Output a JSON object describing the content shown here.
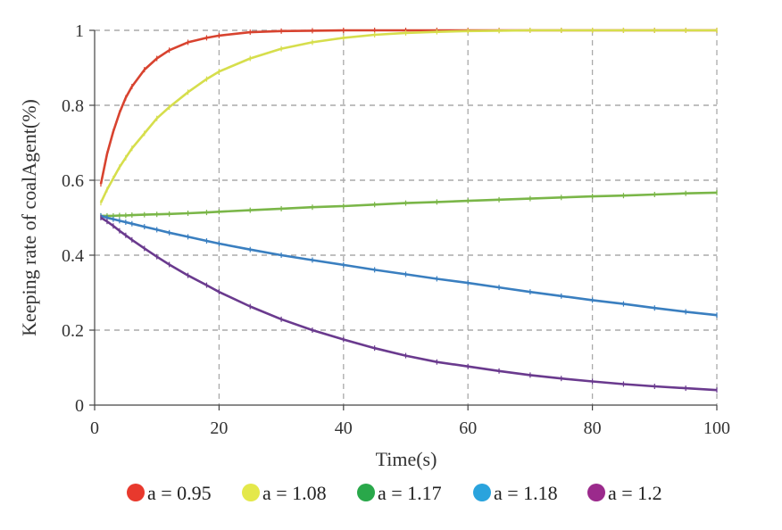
{
  "chart_data": {
    "type": "line",
    "title": "",
    "xlabel": "Time(s)",
    "ylabel": "Keeping rate of coalAgent(%)",
    "xlim": [
      0,
      100
    ],
    "ylim": [
      0,
      1
    ],
    "x_ticks": [
      "0",
      "20",
      "40",
      "60",
      "80",
      "100"
    ],
    "y_ticks": [
      "0",
      "0.2",
      "0.4",
      "0.6",
      "0.8",
      "1"
    ],
    "grid": true,
    "legend_position": "bottom",
    "x": [
      1,
      2,
      3,
      4,
      5,
      6,
      8,
      10,
      12,
      15,
      18,
      20,
      25,
      30,
      35,
      40,
      45,
      50,
      55,
      60,
      65,
      70,
      75,
      80,
      85,
      90,
      95,
      100
    ],
    "series": [
      {
        "name": "a = 0.95",
        "legend_color": "#e8392d",
        "line_color": "#d8432f",
        "values": [
          0.59,
          0.67,
          0.73,
          0.78,
          0.82,
          0.85,
          0.895,
          0.925,
          0.947,
          0.968,
          0.98,
          0.986,
          0.995,
          0.998,
          0.999,
          1.0,
          1.0,
          1.0,
          1.0,
          1.0,
          1.0,
          1.0,
          1.0,
          1.0,
          1.0,
          1.0,
          1.0,
          1.0
        ]
      },
      {
        "name": "a = 1.08",
        "legend_color": "#e4e84a",
        "line_color": "#d6de4c",
        "values": [
          0.54,
          0.575,
          0.605,
          0.635,
          0.66,
          0.685,
          0.725,
          0.765,
          0.795,
          0.835,
          0.87,
          0.89,
          0.925,
          0.951,
          0.968,
          0.98,
          0.988,
          0.993,
          0.996,
          0.998,
          0.999,
          1.0,
          1.0,
          1.0,
          1.0,
          1.0,
          1.0,
          1.0
        ]
      },
      {
        "name": "a = 1.17",
        "legend_color": "#29a84a",
        "line_color": "#7ab648",
        "values": [
          0.505,
          0.505,
          0.505,
          0.506,
          0.506,
          0.507,
          0.508,
          0.509,
          0.51,
          0.512,
          0.514,
          0.516,
          0.52,
          0.524,
          0.528,
          0.531,
          0.535,
          0.539,
          0.542,
          0.545,
          0.548,
          0.551,
          0.554,
          0.557,
          0.559,
          0.562,
          0.565,
          0.567
        ]
      },
      {
        "name": "a = 1.18",
        "legend_color": "#2aa3dd",
        "line_color": "#3a7fc0",
        "values": [
          0.505,
          0.5,
          0.496,
          0.492,
          0.488,
          0.484,
          0.476,
          0.468,
          0.46,
          0.449,
          0.438,
          0.431,
          0.415,
          0.4,
          0.387,
          0.374,
          0.361,
          0.349,
          0.337,
          0.326,
          0.314,
          0.302,
          0.291,
          0.28,
          0.27,
          0.259,
          0.249,
          0.24
        ]
      },
      {
        "name": "a = 1.2",
        "legend_color": "#9b2a8c",
        "line_color": "#6a3a8e",
        "values": [
          0.5,
          0.49,
          0.478,
          0.465,
          0.453,
          0.441,
          0.418,
          0.396,
          0.375,
          0.346,
          0.32,
          0.302,
          0.263,
          0.229,
          0.2,
          0.175,
          0.152,
          0.132,
          0.115,
          0.103,
          0.091,
          0.08,
          0.071,
          0.063,
          0.056,
          0.05,
          0.045,
          0.04
        ]
      }
    ]
  }
}
